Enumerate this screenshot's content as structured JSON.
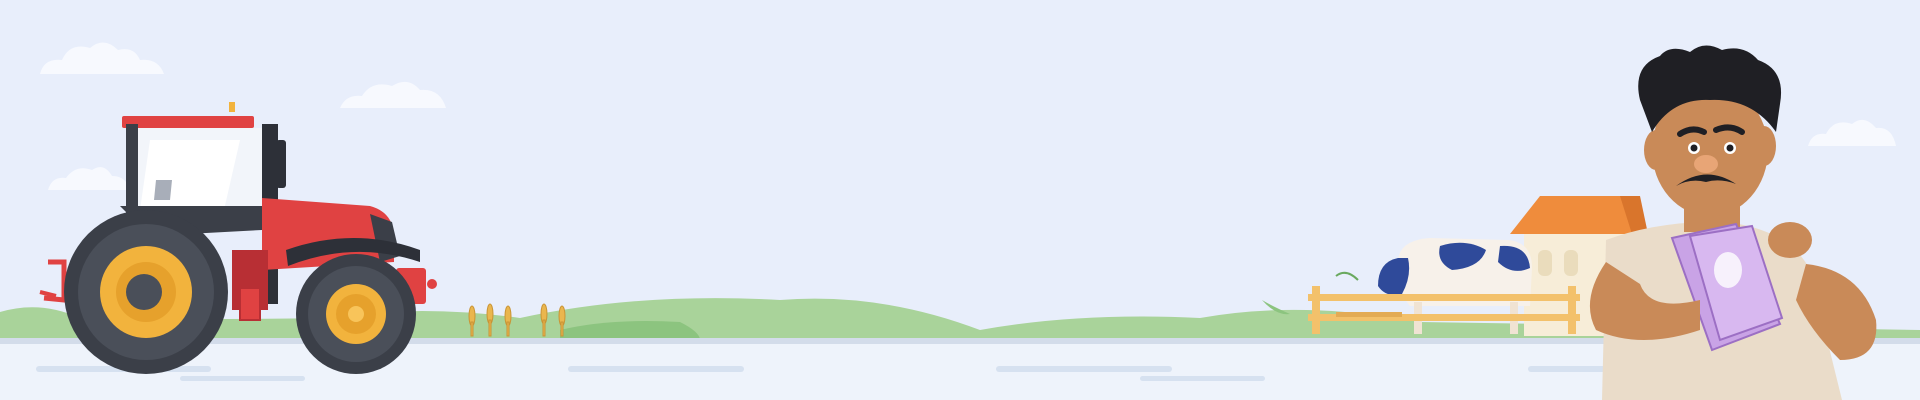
{
  "scene": {
    "description_icons": [
      "tractor-icon",
      "cloud-icon",
      "farmhouse-icon",
      "cow-icon",
      "fence-icon",
      "wheat-icon",
      "farmer-icon",
      "cash-icon"
    ],
    "colors": {
      "sky": "#e8eefb",
      "road": "#eef3fb",
      "road_edge": "#d3dcea",
      "road_line": "#d6e1f0",
      "hill": "#a9d39a",
      "hill_dark": "#8cc47f",
      "tractor_red": "#e04242",
      "tractor_red_dark": "#b82f34",
      "tire": "#3b3f48",
      "hub": "#f2b33d",
      "roof": "#ef8c3c",
      "house_wall": "#f7edd8",
      "cow_blue": "#2f4a9a",
      "fence": "#f3c16b",
      "skin": "#c98a58",
      "shirt": "#eadcc9",
      "hair": "#1f1f24",
      "money": "#c9a3e6"
    }
  }
}
